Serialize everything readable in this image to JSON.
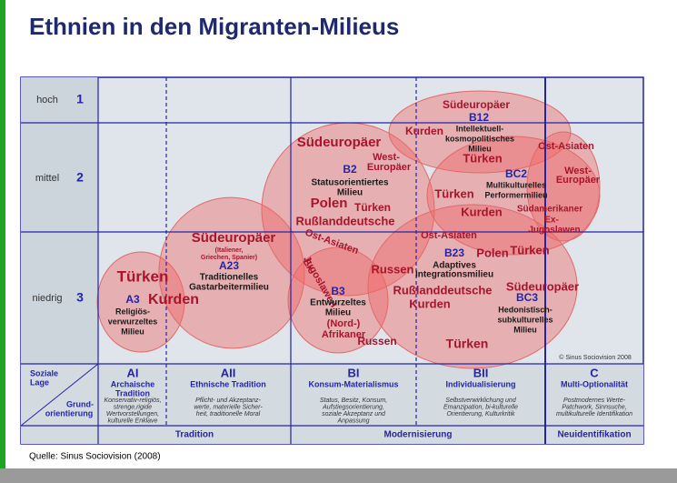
{
  "title": "Ethnien in den Migranten-Milieus",
  "source": "Quelle: Sinus Sociovision (2008)",
  "copyright": "© Sinus Sociovision 2008",
  "rows": [
    {
      "label": "hoch",
      "number": "1"
    },
    {
      "label": "mittel",
      "number": "2"
    },
    {
      "label": "niedrig",
      "number": "3"
    }
  ],
  "corner": {
    "top": [
      "Soziale",
      "Lage"
    ],
    "bottom": [
      "Grund-",
      "orientierung"
    ]
  },
  "columns": [
    {
      "code": "AI",
      "name": [
        "Archaische",
        "Tradition"
      ],
      "description": [
        "Konservativ-religiös,",
        "strenge,rigide",
        "Wertvorstellungen,",
        "kulturelle Enklave"
      ]
    },
    {
      "code": "AII",
      "name": [
        "Ethnische Tradition"
      ],
      "description": [
        "Pflicht- und Akzeptanz-",
        "werte, materielle Sicher-",
        "heit, traditionelle Moral"
      ]
    },
    {
      "code": "BI",
      "name": [
        "Konsum-Materialismus"
      ],
      "description": [
        "Status, Besitz, Konsum,",
        "Aufstiegsorientierung,",
        "soziale Akzeptanz und",
        "Anpassung"
      ]
    },
    {
      "code": "BII",
      "name": [
        "Individualisierung"
      ],
      "description": [
        "Selbstverwirklichung und",
        "Emanzipation, bi-kulturelle",
        "Orientierung, Kulturkritik"
      ]
    },
    {
      "code": "C",
      "name": [
        "Multi-Optionalität"
      ],
      "description": [
        "Postmodernes Werte-",
        "Patchwork, Sinnsuche,",
        "multikulturelle Identifikation"
      ]
    }
  ],
  "groups": [
    "Tradition",
    "Modernisierung",
    "Neuidentifikation"
  ],
  "labels": [
    "Türken",
    "A3",
    "Kurden",
    "Religiös-",
    "verwurzeltes",
    "Milieu",
    "Südeuropäer",
    "(Italiener,",
    "Griechen, Spanier)",
    "A23",
    "Traditionelles",
    "Gastarbeitermilieu",
    "Südeuropäer",
    "West-",
    "Europäer",
    "B2",
    "Statusorientiertes",
    "Milieu",
    "Polen",
    "Türken",
    "Rußlanddeutsche",
    "Ost-Asiaten",
    "Ex-",
    "Jugoslawen",
    "B3",
    "Entwurzeltes",
    "Milieu",
    "(Nord-)",
    "Afrikaner",
    "Russen",
    "Südeuropäer",
    "B12",
    "Kurden",
    "Intellektuell-",
    "kosmopolitisches",
    "Milieu",
    "Türken",
    "Ost-Asiaten",
    "BC2",
    "West-",
    "Europäer",
    "Multikulturelles",
    "Performermilieu",
    "Türken",
    "Kurden",
    "Südamerikaner",
    "Ex-",
    "Jugoslawen",
    "Ost-Asiaten",
    "B23",
    "Polen",
    "Türken",
    "Adaptives",
    "Integrationsmilieu",
    "Russen",
    "Rußlanddeutsche",
    "Kurden",
    "Südeuropäer",
    "BC3",
    "Hedonistisch-",
    "subkulturelles",
    "Milieu",
    "Türken"
  ]
}
